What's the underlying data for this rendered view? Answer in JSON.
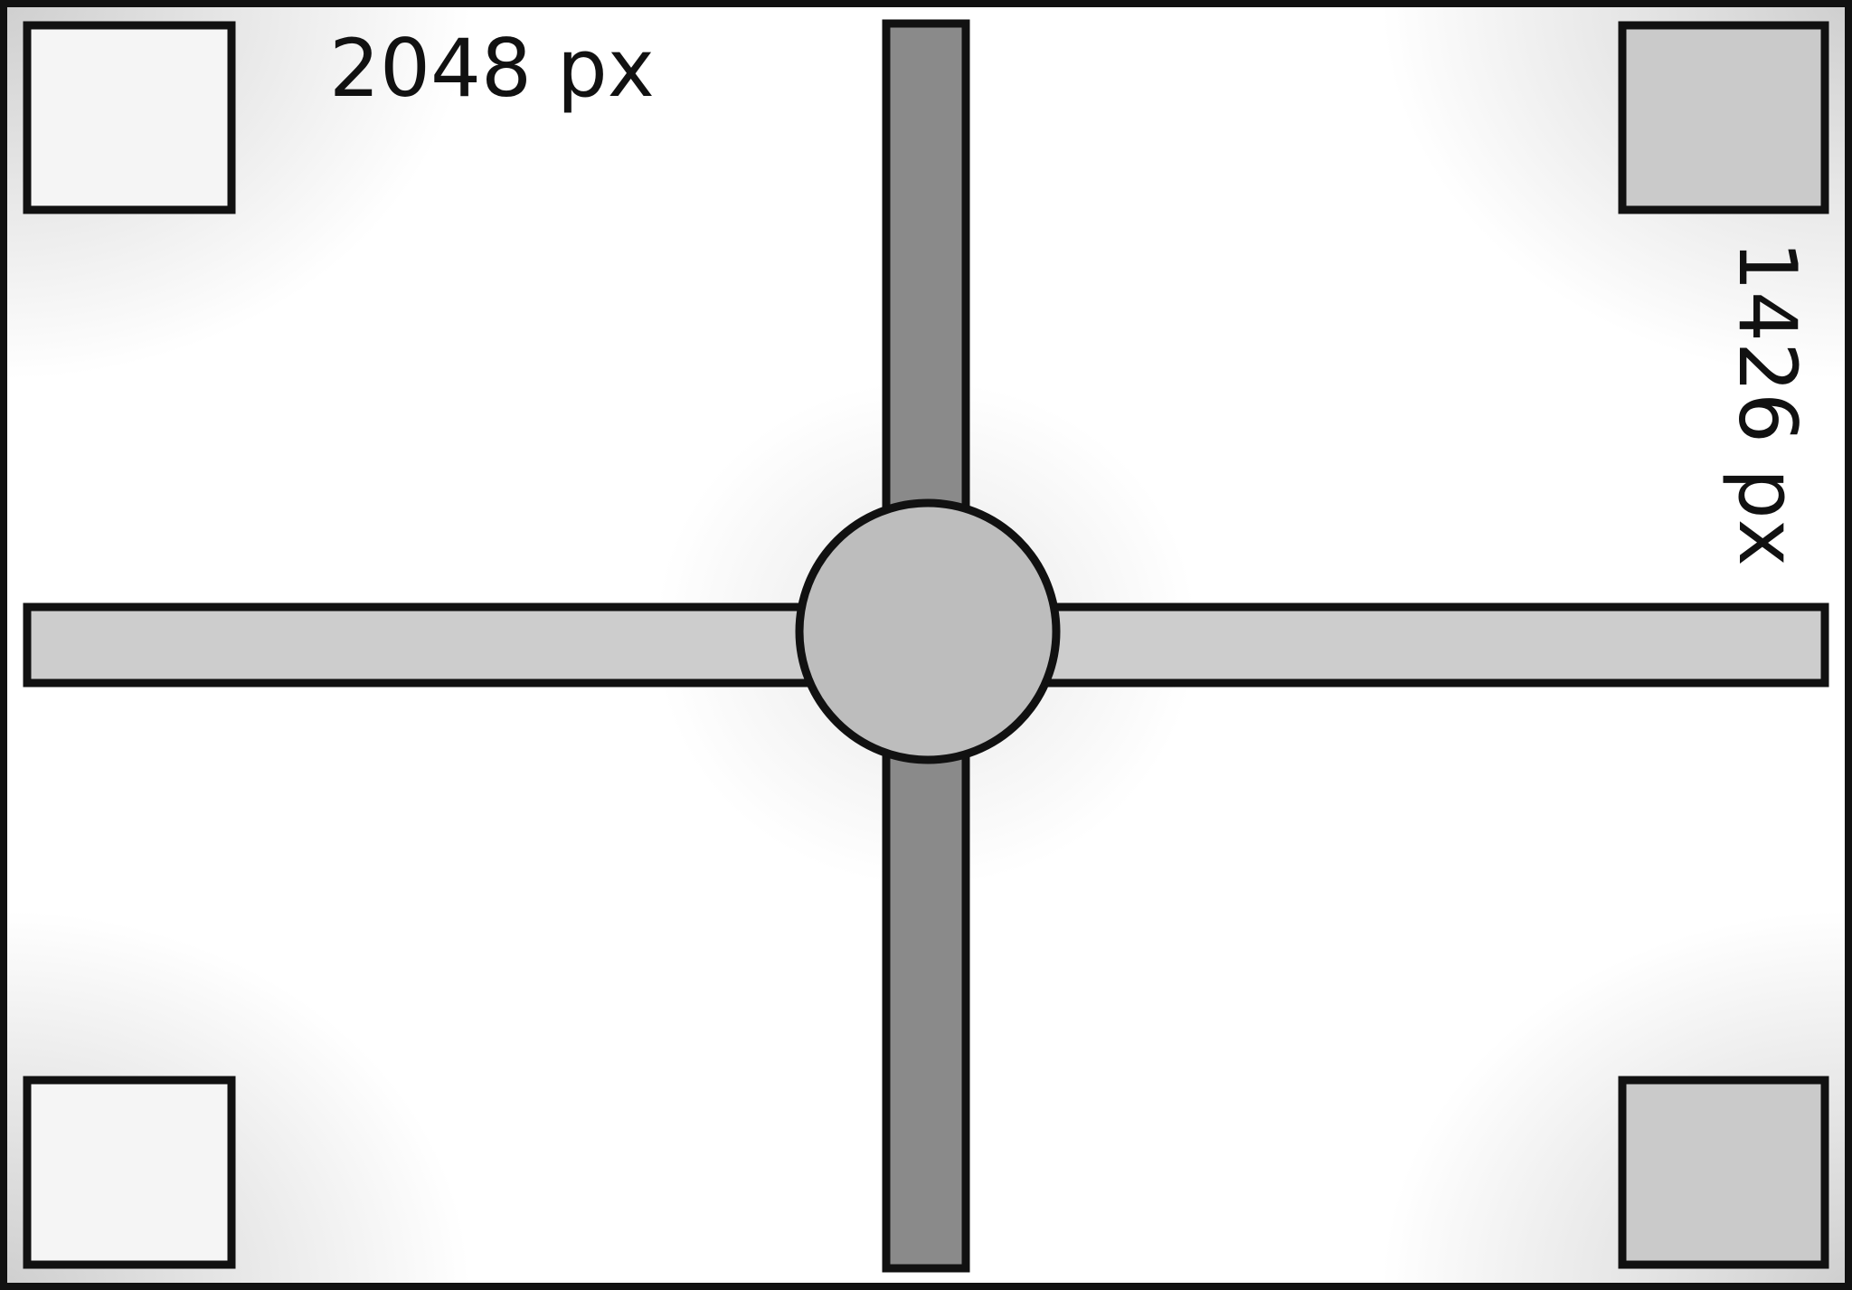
{
  "labels": {
    "width_text": "2048 px",
    "height_text": "1426 px"
  },
  "colors": {
    "stroke": "#111111",
    "page_background": "#ffffff",
    "vignette": "#c9c9c9",
    "vertical_bar_fill": "#8a8a8a",
    "horizontal_bar_fill": "#cdcdcd",
    "center_circle_fill": "#bdbdbd",
    "left_corner_square_fill": "#f5f5f5",
    "right_corner_square_fill": "#cacaca"
  }
}
